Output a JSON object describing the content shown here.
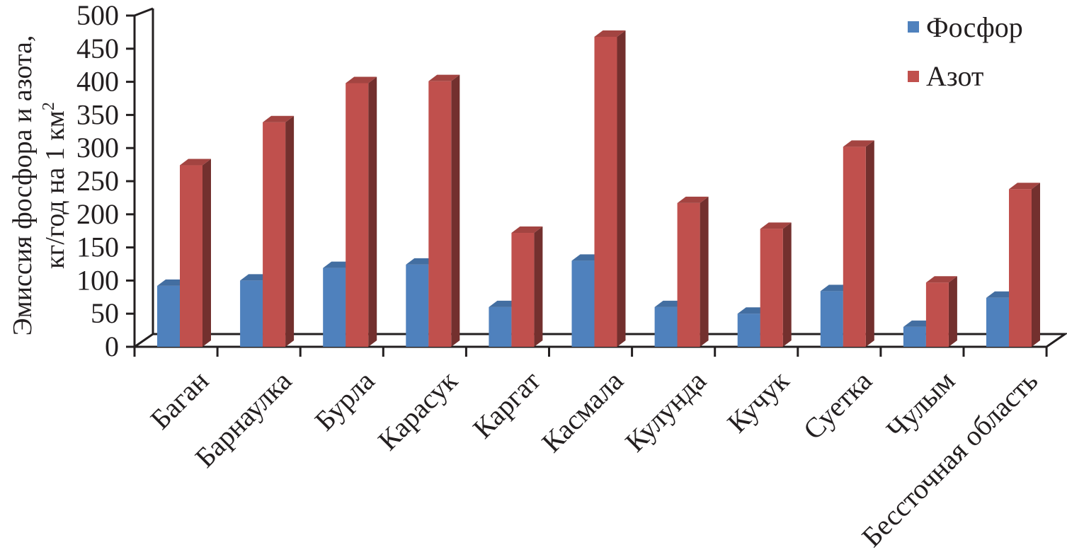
{
  "chart_data": {
    "type": "bar",
    "title": "",
    "xlabel": "",
    "ylabel_line1": "Эмиссия фосфора и азота,",
    "ylabel_line2": "кг/год на 1 км",
    "ylabel_sup": "2",
    "ylim": [
      0,
      500
    ],
    "yticks": [
      0,
      50,
      100,
      150,
      200,
      250,
      300,
      350,
      400,
      450,
      500
    ],
    "grid": false,
    "legend_position": "top-right",
    "categories": [
      "Баган",
      "Барнаулка",
      "Бурла",
      "Карасук",
      "Каргат",
      "Касмала",
      "Кулунда",
      "Кучук",
      "Суетка",
      "Чулым",
      "Бессточная область"
    ],
    "series": [
      {
        "name": "Фосфор",
        "color": "#4f81bd",
        "values": [
          92,
          100,
          119,
          124,
          60,
          130,
          60,
          50,
          84,
          30,
          74
        ]
      },
      {
        "name": "Азот",
        "color": "#c0504d",
        "values": [
          274,
          339,
          398,
          401,
          172,
          468,
          217,
          178,
          302,
          97,
          238
        ]
      }
    ]
  }
}
